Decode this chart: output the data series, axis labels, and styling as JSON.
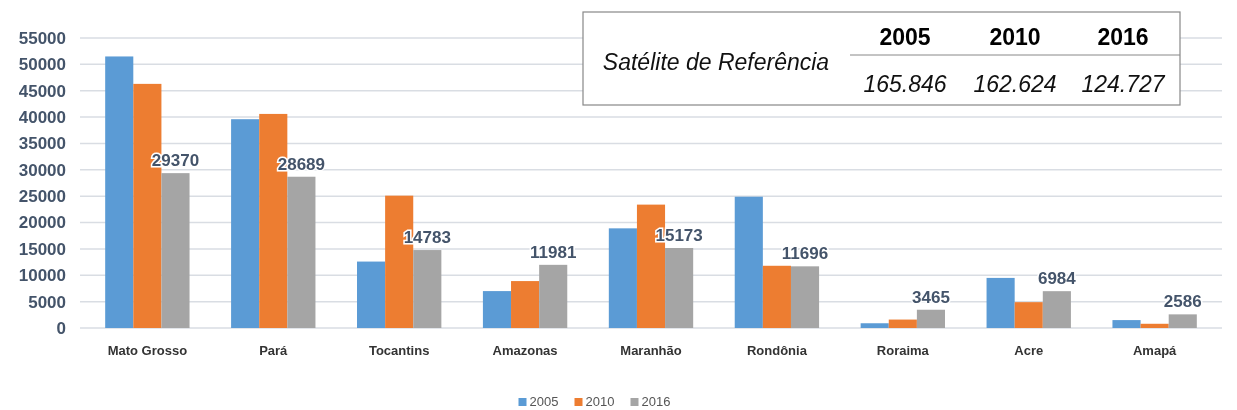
{
  "chart_data": {
    "type": "bar",
    "categories": [
      "Mato Grosso",
      "Pará",
      "Tocantins",
      "Amazonas",
      "Maranhão",
      "Rondônia",
      "Roraima",
      "Acre",
      "Amapá"
    ],
    "series": [
      {
        "name": "2005",
        "color": "#5b9bd5",
        "values": [
          51500,
          39600,
          12600,
          7000,
          18900,
          24900,
          900,
          9500,
          1500
        ]
      },
      {
        "name": "2010",
        "color": "#ed7d31",
        "values": [
          46300,
          40600,
          25100,
          8900,
          23400,
          11800,
          1600,
          4900,
          800
        ]
      },
      {
        "name": "2016",
        "color": "#a5a5a5",
        "values": [
          29370,
          28689,
          14783,
          11981,
          15173,
          11696,
          3465,
          6984,
          2586
        ],
        "value_labels": [
          "29370",
          "28689",
          "14783",
          "11981",
          "15173",
          "11696",
          "3465",
          "6984",
          "2586"
        ]
      }
    ],
    "ylim": [
      0,
      55000
    ],
    "yticks": [
      0,
      5000,
      10000,
      15000,
      20000,
      25000,
      30000,
      35000,
      40000,
      45000,
      50000,
      55000
    ],
    "grid": "y",
    "legend": "bottom",
    "annotations": [
      "Satélite de Referência",
      "165.846",
      "162.624",
      "124.727"
    ]
  }
}
